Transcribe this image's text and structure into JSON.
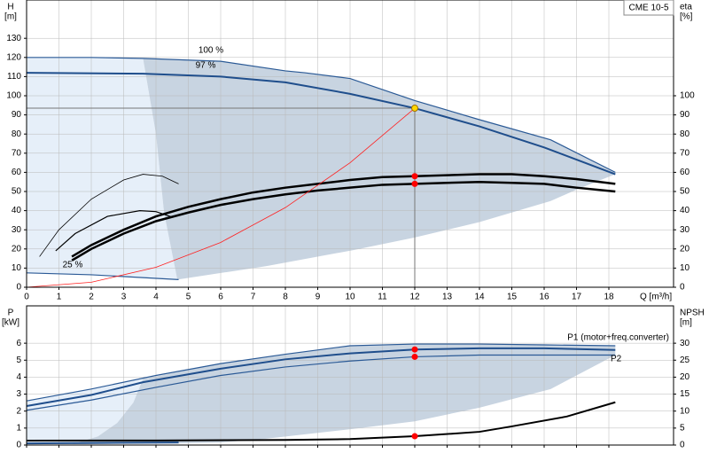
{
  "chart_data": [
    {
      "type": "line",
      "title": "CME 10-5",
      "ylabel": "H",
      "yunit": "[m]",
      "y2label": "eta",
      "y2unit": "[%]",
      "xlabel": "Q [m³/h]",
      "xlim": [
        0,
        20
      ],
      "xticks": [
        0,
        1,
        2,
        3,
        4,
        5,
        6,
        7,
        8,
        9,
        10,
        11,
        12,
        13,
        14,
        15,
        16,
        17,
        18
      ],
      "ylim": [
        0,
        150
      ],
      "yticks": [
        0,
        10,
        20,
        30,
        40,
        50,
        60,
        70,
        80,
        90,
        100,
        110,
        120,
        130
      ],
      "y2lim": [
        0,
        150
      ],
      "y2ticks": [
        0,
        10,
        20,
        30,
        40,
        50,
        60,
        70,
        80,
        90,
        100
      ],
      "grid": true,
      "xtick_labels": true,
      "areas": [
        {
          "color": "#e6eff9",
          "x": [
            0,
            2,
            3.6,
            4,
            4.25,
            4.66,
            2,
            0
          ],
          "values": [
            120,
            120,
            119.5,
            80,
            39,
            4,
            6.5,
            7.5
          ]
        },
        {
          "color": "#c8d4e1",
          "x": [
            3.6,
            6,
            8,
            8.6,
            10,
            12,
            14,
            16.2,
            18.2,
            18.2,
            17,
            16.2,
            14,
            12,
            10.1,
            7.4,
            4.66,
            4.25,
            4,
            3.6
          ],
          "values": [
            119.5,
            118,
            113,
            112,
            109,
            97.5,
            87.5,
            77,
            60,
            59,
            51,
            45,
            34,
            26,
            19.4,
            11,
            4,
            39,
            80,
            119.5
          ]
        }
      ],
      "series": [
        {
          "name": "100 %",
          "color": "#2b5a96",
          "width": 1.2,
          "x": [
            0,
            2,
            3.6,
            6,
            8,
            8.6,
            10,
            12,
            14,
            16.2,
            18.2
          ],
          "values": [
            120,
            120,
            119.5,
            118,
            113,
            112,
            109,
            97.5,
            87.5,
            77,
            60
          ]
        },
        {
          "name": "97 %",
          "color": "#1f4e8c",
          "width": 2,
          "x": [
            0,
            3.6,
            6,
            8,
            10,
            12,
            14,
            16,
            18.2
          ],
          "values": [
            112,
            111.5,
            110,
            107,
            101,
            93.5,
            84,
            73,
            59
          ]
        },
        {
          "name": "25 %",
          "color": "#2b5a96",
          "width": 1.2,
          "x": [
            0,
            2,
            4.7
          ],
          "values": [
            7.5,
            6.5,
            4
          ]
        },
        {
          "color": "#000000",
          "width": 2.5,
          "axis": "y2",
          "x": [
            1.4,
            2,
            3,
            4,
            5,
            6,
            7,
            8,
            9,
            10,
            11,
            12,
            13,
            14,
            15,
            16,
            17,
            18.2
          ],
          "values": [
            16,
            22,
            30,
            37,
            42,
            46,
            49.5,
            52,
            54,
            56,
            57.5,
            58,
            58.5,
            59,
            59,
            58,
            56.5,
            54
          ]
        },
        {
          "color": "#000000",
          "width": 2.5,
          "axis": "y2",
          "x": [
            1.4,
            2,
            3,
            4,
            5,
            6,
            7,
            8,
            9,
            10,
            11,
            12,
            13,
            14,
            15,
            16,
            17,
            18.2
          ],
          "values": [
            14,
            20,
            28,
            34.5,
            39,
            43,
            46,
            48.5,
            50.5,
            52,
            53.5,
            54,
            54.5,
            55,
            54.5,
            54,
            52,
            50
          ]
        },
        {
          "color": "#000000",
          "width": 0.8,
          "axis": "y2",
          "x": [
            0.4,
            1,
            2,
            3,
            3.6,
            4.2,
            4.7
          ],
          "values": [
            16,
            30,
            46,
            56,
            59,
            58,
            54
          ]
        },
        {
          "color": "#000000",
          "width": 1.2,
          "axis": "y2",
          "x": [
            0.9,
            1.5,
            2.5,
            3.5,
            4,
            4.5
          ],
          "values": [
            19,
            28,
            37,
            40,
            39.5,
            36.6
          ]
        },
        {
          "color": "#ff2020",
          "width": 0.8,
          "x": [
            0,
            2,
            4,
            6,
            8,
            10,
            12
          ],
          "values": [
            0,
            2.6,
            10.4,
            23.4,
            41.6,
            65,
            93.5
          ]
        }
      ],
      "points": [
        {
          "x": 12,
          "y": 93.5,
          "color": "#ffd700",
          "guide": true
        },
        {
          "x": 12,
          "y": 58,
          "axis": "y2",
          "color": "#ff0000"
        },
        {
          "x": 12,
          "y": 54,
          "axis": "y2",
          "color": "#ff0000"
        }
      ]
    },
    {
      "type": "line",
      "ylabel": "P",
      "yunit": "[kW]",
      "y2label": "NPSH",
      "y2unit": "[m]",
      "xlim": [
        0,
        20
      ],
      "xticks": [
        0,
        1,
        2,
        3,
        4,
        5,
        6,
        7,
        8,
        9,
        10,
        11,
        12,
        13,
        14,
        15,
        16,
        17,
        18
      ],
      "ylim": [
        0,
        8.2
      ],
      "yticks": [
        0,
        1,
        2,
        3,
        4,
        5,
        6
      ],
      "y2lim": [
        0,
        41
      ],
      "y2ticks": [
        0,
        5,
        10,
        15,
        20,
        25,
        30
      ],
      "grid": true,
      "xtick_labels": false,
      "areas": [
        {
          "color": "#e6eff9",
          "x": [
            0,
            2,
            3.6,
            3.3,
            2.8,
            2.2,
            1.4,
            0
          ],
          "values": [
            2.6,
            3.3,
            3.9,
            2.5,
            1.3,
            0.5,
            0.05,
            0.1
          ]
        },
        {
          "color": "#c8d4e1",
          "x": [
            3.6,
            6,
            8,
            10,
            12,
            14,
            16,
            18.2,
            18.2,
            16.2,
            14,
            12,
            10.1,
            7.4,
            6,
            4.66,
            1.4,
            2.2,
            2.8,
            3.3,
            3.6
          ],
          "values": [
            3.9,
            4.8,
            5.35,
            5.85,
            5.95,
            5.95,
            5.9,
            5.85,
            5.3,
            3.3,
            2.2,
            1.4,
            0.95,
            0.37,
            0.15,
            0.1,
            0.05,
            0.5,
            1.3,
            2.5,
            3.9
          ]
        }
      ],
      "series": [
        {
          "name": "P1 (motor+freq.converter)",
          "color": "#2b5a96",
          "width": 1.2,
          "x": [
            0,
            2,
            4,
            6,
            8,
            10,
            12,
            14,
            16,
            18.2
          ],
          "values": [
            2.6,
            3.3,
            4.1,
            4.8,
            5.35,
            5.85,
            5.95,
            5.95,
            5.9,
            5.85
          ]
        },
        {
          "color": "#1f4e8c",
          "width": 2,
          "x": [
            0,
            2,
            3.6,
            6,
            8,
            10,
            12,
            14,
            16,
            18.2
          ],
          "values": [
            2.3,
            2.95,
            3.7,
            4.5,
            5.05,
            5.4,
            5.63,
            5.7,
            5.7,
            5.6
          ]
        },
        {
          "name": "P2",
          "color": "#2b5a96",
          "width": 1.2,
          "x": [
            0,
            2,
            4,
            6,
            8,
            10,
            12,
            14,
            16,
            18.2
          ],
          "values": [
            2.05,
            2.65,
            3.4,
            4.1,
            4.6,
            4.95,
            5.2,
            5.3,
            5.3,
            5.3
          ]
        },
        {
          "color": "#1f4e8c",
          "width": 2,
          "x": [
            0,
            4.7
          ],
          "values": [
            0.1,
            0.15
          ]
        },
        {
          "color": "#000000",
          "width": 2,
          "axis": "y2",
          "x": [
            0,
            4,
            8,
            10,
            12,
            14,
            15,
            16.7,
            18.2
          ],
          "values": [
            1.3,
            1.35,
            1.5,
            1.75,
            2.6,
            3.9,
            5.5,
            8.4,
            12.6
          ]
        }
      ],
      "points": [
        {
          "x": 12,
          "y": 5.63,
          "color": "#ff0000"
        },
        {
          "x": 12,
          "y": 5.2,
          "color": "#ff0000"
        },
        {
          "x": 12,
          "y": 2.6,
          "axis": "y2",
          "color": "#ff0000"
        }
      ]
    }
  ]
}
